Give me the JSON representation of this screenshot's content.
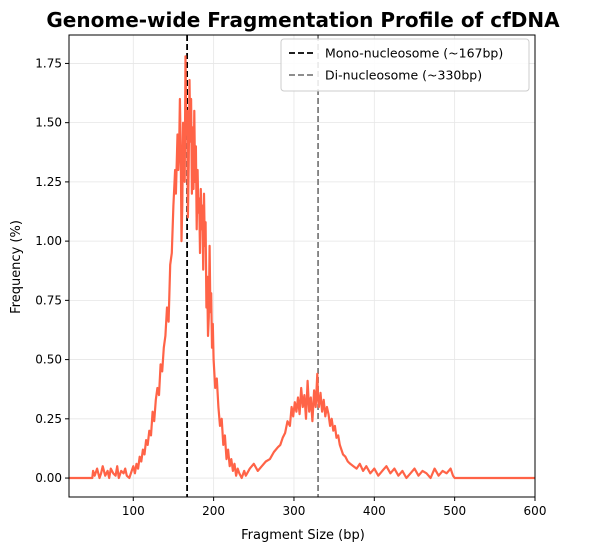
{
  "chart_data": {
    "type": "line",
    "title": "Genome-wide Fragmentation Profile of cfDNA",
    "xlabel": "Fragment Size (bp)",
    "ylabel": "Frequency (%)",
    "xlim": [
      20,
      600
    ],
    "ylim": [
      -0.08,
      1.87
    ],
    "xticks": [
      100,
      200,
      300,
      400,
      500,
      600
    ],
    "yticks": [
      0.0,
      0.25,
      0.5,
      0.75,
      1.0,
      1.25,
      1.5,
      1.75
    ],
    "xtick_labels": [
      "100",
      "200",
      "300",
      "400",
      "500",
      "600"
    ],
    "ytick_labels": [
      "0.00",
      "0.25",
      "0.50",
      "0.75",
      "1.00",
      "1.25",
      "1.50",
      "1.75"
    ],
    "grid": true,
    "legend_position": "top-right",
    "series": [
      {
        "color": "#ff6347",
        "x": [
          20,
          49,
          50,
          52,
          55,
          58,
          60,
          62,
          65,
          68,
          70,
          72,
          75,
          78,
          80,
          82,
          85,
          88,
          90,
          92,
          95,
          98,
          100,
          102,
          104,
          106,
          108,
          110,
          112,
          114,
          116,
          118,
          120,
          122,
          124,
          126,
          128,
          130,
          132,
          134,
          136,
          138,
          140,
          142,
          144,
          146,
          148,
          150,
          152,
          153,
          155,
          156,
          157,
          158,
          159,
          160,
          161,
          162,
          163,
          164,
          165,
          166,
          167,
          168,
          169,
          170,
          171,
          172,
          173,
          174,
          175,
          176,
          177,
          178,
          179,
          180,
          181,
          182,
          183,
          184,
          185,
          186,
          187,
          188,
          189,
          190,
          191,
          192,
          193,
          194,
          195,
          196,
          197,
          198,
          199,
          200,
          202,
          204,
          206,
          208,
          210,
          212,
          214,
          216,
          218,
          220,
          222,
          224,
          226,
          228,
          230,
          232,
          235,
          238,
          240,
          245,
          250,
          255,
          260,
          265,
          270,
          275,
          280,
          283,
          286,
          289,
          292,
          295,
          297,
          299,
          301,
          303,
          305,
          307,
          309,
          311,
          313,
          315,
          317,
          319,
          321,
          323,
          325,
          327,
          329,
          330,
          331,
          333,
          335,
          337,
          339,
          341,
          343,
          345,
          347,
          349,
          351,
          353,
          355,
          357,
          359,
          361,
          364,
          367,
          370,
          374,
          378,
          382,
          386,
          390,
          395,
          400,
          405,
          410,
          415,
          420,
          425,
          430,
          435,
          440,
          445,
          450,
          455,
          460,
          465,
          470,
          475,
          480,
          485,
          490,
          495,
          498,
          500,
          600
        ],
        "y": [
          0,
          0,
          0.03,
          0.01,
          0.04,
          0.0,
          0.02,
          0.05,
          0.01,
          0.03,
          0.0,
          0.04,
          0.02,
          0.01,
          0.05,
          0.0,
          0.03,
          0.02,
          0.04,
          0.01,
          0.0,
          0.03,
          0.05,
          0.02,
          0.06,
          0.04,
          0.09,
          0.07,
          0.12,
          0.1,
          0.16,
          0.14,
          0.2,
          0.18,
          0.28,
          0.24,
          0.33,
          0.38,
          0.35,
          0.48,
          0.45,
          0.55,
          0.6,
          0.72,
          0.66,
          0.9,
          0.95,
          1.15,
          1.3,
          1.2,
          1.45,
          1.3,
          1.38,
          1.6,
          1.4,
          1.0,
          1.15,
          1.5,
          1.35,
          1.25,
          1.78,
          1.45,
          1.55,
          1.1,
          1.32,
          1.68,
          1.42,
          1.6,
          1.2,
          1.48,
          1.22,
          1.55,
          1.25,
          1.4,
          1.05,
          1.3,
          1.12,
          1.18,
          0.95,
          1.22,
          1.05,
          1.15,
          0.88,
          1.2,
          0.98,
          1.08,
          0.72,
          0.85,
          0.6,
          0.68,
          0.98,
          0.7,
          0.78,
          0.55,
          0.65,
          0.5,
          0.38,
          0.42,
          0.3,
          0.22,
          0.25,
          0.14,
          0.18,
          0.08,
          0.12,
          0.05,
          0.08,
          0.03,
          0.06,
          0.01,
          0.04,
          0.02,
          0.0,
          0.03,
          0.01,
          0.04,
          0.06,
          0.03,
          0.05,
          0.07,
          0.08,
          0.11,
          0.13,
          0.14,
          0.17,
          0.19,
          0.24,
          0.22,
          0.3,
          0.26,
          0.32,
          0.28,
          0.34,
          0.27,
          0.38,
          0.3,
          0.35,
          0.25,
          0.41,
          0.28,
          0.34,
          0.24,
          0.37,
          0.3,
          0.44,
          0.33,
          0.3,
          0.36,
          0.28,
          0.33,
          0.26,
          0.3,
          0.27,
          0.22,
          0.25,
          0.2,
          0.22,
          0.17,
          0.18,
          0.14,
          0.12,
          0.1,
          0.09,
          0.07,
          0.06,
          0.05,
          0.04,
          0.06,
          0.03,
          0.05,
          0.02,
          0.04,
          0.01,
          0.03,
          0.05,
          0.02,
          0.04,
          0.01,
          0.03,
          0.0,
          0.02,
          0.04,
          0.01,
          0.03,
          0.02,
          0.0,
          0.04,
          0.01,
          0.03,
          0.02,
          0.04,
          0.01,
          0,
          0
        ]
      }
    ],
    "vlines": [
      {
        "x": 167,
        "color": "#000000",
        "label": "Mono-nucleosome (~167bp)"
      },
      {
        "x": 330,
        "color": "#7f7f7f",
        "label": "Di-nucleosome (~330bp)"
      }
    ]
  }
}
